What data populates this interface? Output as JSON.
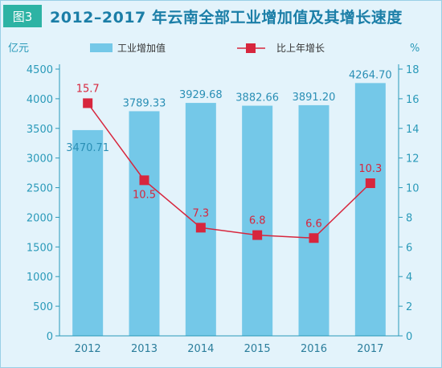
{
  "figure_badge": "图3",
  "title": "2012–2017 年云南全部工业增加值及其增长速度",
  "chart_data": {
    "type": "bar",
    "categories": [
      "2012",
      "2013",
      "2014",
      "2015",
      "2016",
      "2017"
    ],
    "left_unit": "亿元",
    "right_unit": "%",
    "left_ylim": [
      0,
      4500
    ],
    "left_ticks": [
      0,
      500,
      1000,
      1500,
      2000,
      2500,
      3000,
      3500,
      4000,
      4500
    ],
    "right_ylim": [
      0,
      18
    ],
    "right_ticks": [
      0,
      2,
      4,
      6,
      8,
      10,
      12,
      14,
      16,
      18
    ],
    "legend_placement": "top",
    "grid": false,
    "series": [
      {
        "name": "工业增加值",
        "type": "bar",
        "axis": "left",
        "color": "#74c8e8",
        "values": [
          3470.71,
          3789.33,
          3929.68,
          3882.66,
          3891.2,
          4264.7
        ],
        "labels": [
          "3470.71",
          "3789.33",
          "3929.68",
          "3882.66",
          "3891.20",
          "4264.70"
        ]
      },
      {
        "name": "比上年增长",
        "type": "line",
        "axis": "right",
        "color": "#d7263d",
        "values": [
          15.7,
          10.5,
          7.3,
          6.8,
          6.6,
          10.3
        ],
        "labels": [
          "15.7",
          "10.5",
          "7.3",
          "6.8",
          "6.6",
          "10.3"
        ]
      }
    ]
  }
}
